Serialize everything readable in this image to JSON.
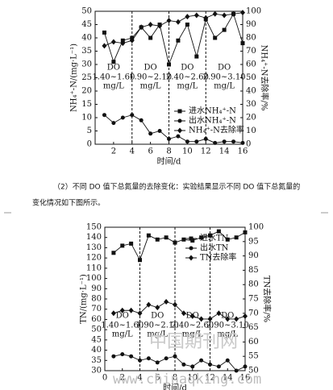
{
  "chart_data": [
    {
      "type": "line",
      "x_label": "时间/d",
      "y_label": "NH₄⁺-N/(mg·L⁻¹)",
      "y2_label": "NH₄⁺-N去除率/%",
      "xlim": [
        0,
        16
      ],
      "xticks": [
        2,
        4,
        6,
        8,
        10,
        12,
        14,
        16
      ],
      "ylim": [
        0,
        50
      ],
      "yticks": [
        0,
        5,
        10,
        15,
        20,
        25,
        30,
        35,
        40,
        45,
        50
      ],
      "y2lim": [
        0,
        100
      ],
      "y2ticks": [
        0,
        10,
        20,
        30,
        40,
        50,
        60,
        70,
        80,
        90,
        100
      ],
      "phase_boundaries": [
        4,
        8,
        12
      ],
      "phases": [
        {
          "name": "DO",
          "range": "1.40~1.60",
          "unit": "mg/L"
        },
        {
          "name": "DO",
          "range": "1.90~2.10",
          "unit": "mg/L"
        },
        {
          "name": "DO",
          "range": "2.40~2.60",
          "unit": "mg/L"
        },
        {
          "name": "DO",
          "range": "2.90~3.10",
          "unit": "mg/L"
        }
      ],
      "x": [
        1,
        2,
        3,
        4,
        5,
        6,
        7,
        8,
        9,
        10,
        11,
        12,
        13,
        14,
        15,
        16
      ],
      "series": [
        {
          "name": "进水NH₄⁺-N",
          "color": "#111111",
          "marker": "square",
          "values": [
            42,
            31,
            39,
            40,
            44,
            40,
            45,
            30,
            39,
            45,
            33,
            47,
            40,
            43,
            49,
            38
          ]
        },
        {
          "name": "出水NH₄⁺-N",
          "color": "#111111",
          "marker": "circle",
          "values": [
            11,
            8,
            10,
            11,
            9,
            4,
            5,
            2,
            3,
            1,
            1,
            2,
            0.5,
            1,
            1,
            0.5
          ]
        },
        {
          "name": "NH₄⁺-N去除率",
          "color": "#111111",
          "marker": "diamond",
          "axis": "y2",
          "values": [
            74,
            77,
            76,
            78,
            88,
            90,
            89,
            93,
            92,
            96,
            97,
            95,
            98,
            97,
            98,
            99
          ]
        }
      ]
    },
    {
      "type": "line",
      "x_label": "时间/d",
      "y_label": "TN/(mg·L⁻¹)",
      "y2_label": "TN去除率/%",
      "axis_break": true,
      "xlim": [
        0,
        16
      ],
      "xticks": [
        0,
        2,
        4,
        6,
        8,
        10,
        12,
        14,
        16
      ],
      "ylim": [
        30,
        150
      ],
      "yticks": [
        30,
        35,
        40,
        45,
        50,
        60,
        70,
        80,
        90,
        100,
        110,
        120,
        130,
        140,
        150
      ],
      "y2lim": [
        50,
        100
      ],
      "y2ticks": [
        50,
        55,
        60,
        65,
        70,
        75,
        80,
        85,
        90,
        95,
        100
      ],
      "phase_boundaries": [
        4,
        8,
        12
      ],
      "phases": [
        {
          "name": "DO",
          "range": "1.40~1.60",
          "unit": "mg/L"
        },
        {
          "name": "DO",
          "range": "1.90~2.10",
          "unit": "mg/L"
        },
        {
          "name": "DO",
          "range": "2.40~2.60",
          "unit": "mg/L"
        },
        {
          "name": "DO",
          "range": "2.90~3.10",
          "unit": "mg/L"
        }
      ],
      "x": [
        1,
        2,
        3,
        4,
        5,
        6,
        7,
        8,
        9,
        10,
        11,
        12,
        13,
        14,
        15,
        16
      ],
      "series": [
        {
          "name": "进水TN",
          "color": "#111111",
          "marker": "square",
          "values": [
            125,
            132,
            134,
            118,
            142,
            138,
            140,
            135,
            138,
            137,
            140,
            142,
            146,
            138,
            140,
            145
          ]
        },
        {
          "name": "出水TN",
          "color": "#111111",
          "marker": "circle",
          "values": [
            37,
            38,
            37,
            35,
            36,
            34,
            36,
            37,
            33,
            32,
            35,
            33,
            32,
            35,
            30,
            32
          ]
        },
        {
          "name": "TN去除率",
          "color": "#111111",
          "marker": "diamond",
          "axis": "y2",
          "values": [
            70,
            71,
            71,
            70,
            73,
            72,
            74,
            73,
            70,
            69,
            68,
            68,
            70,
            68,
            68,
            69
          ]
        }
      ]
    }
  ],
  "paragraph": [
    "（2）不同 DO 值下总氮量的去除变化：实验结果显示不同 DO 值下总氮量的",
    "变化情况如下图所示。"
  ],
  "watermark": [
    "中国期刊网",
    "www.chinaqking.com"
  ]
}
